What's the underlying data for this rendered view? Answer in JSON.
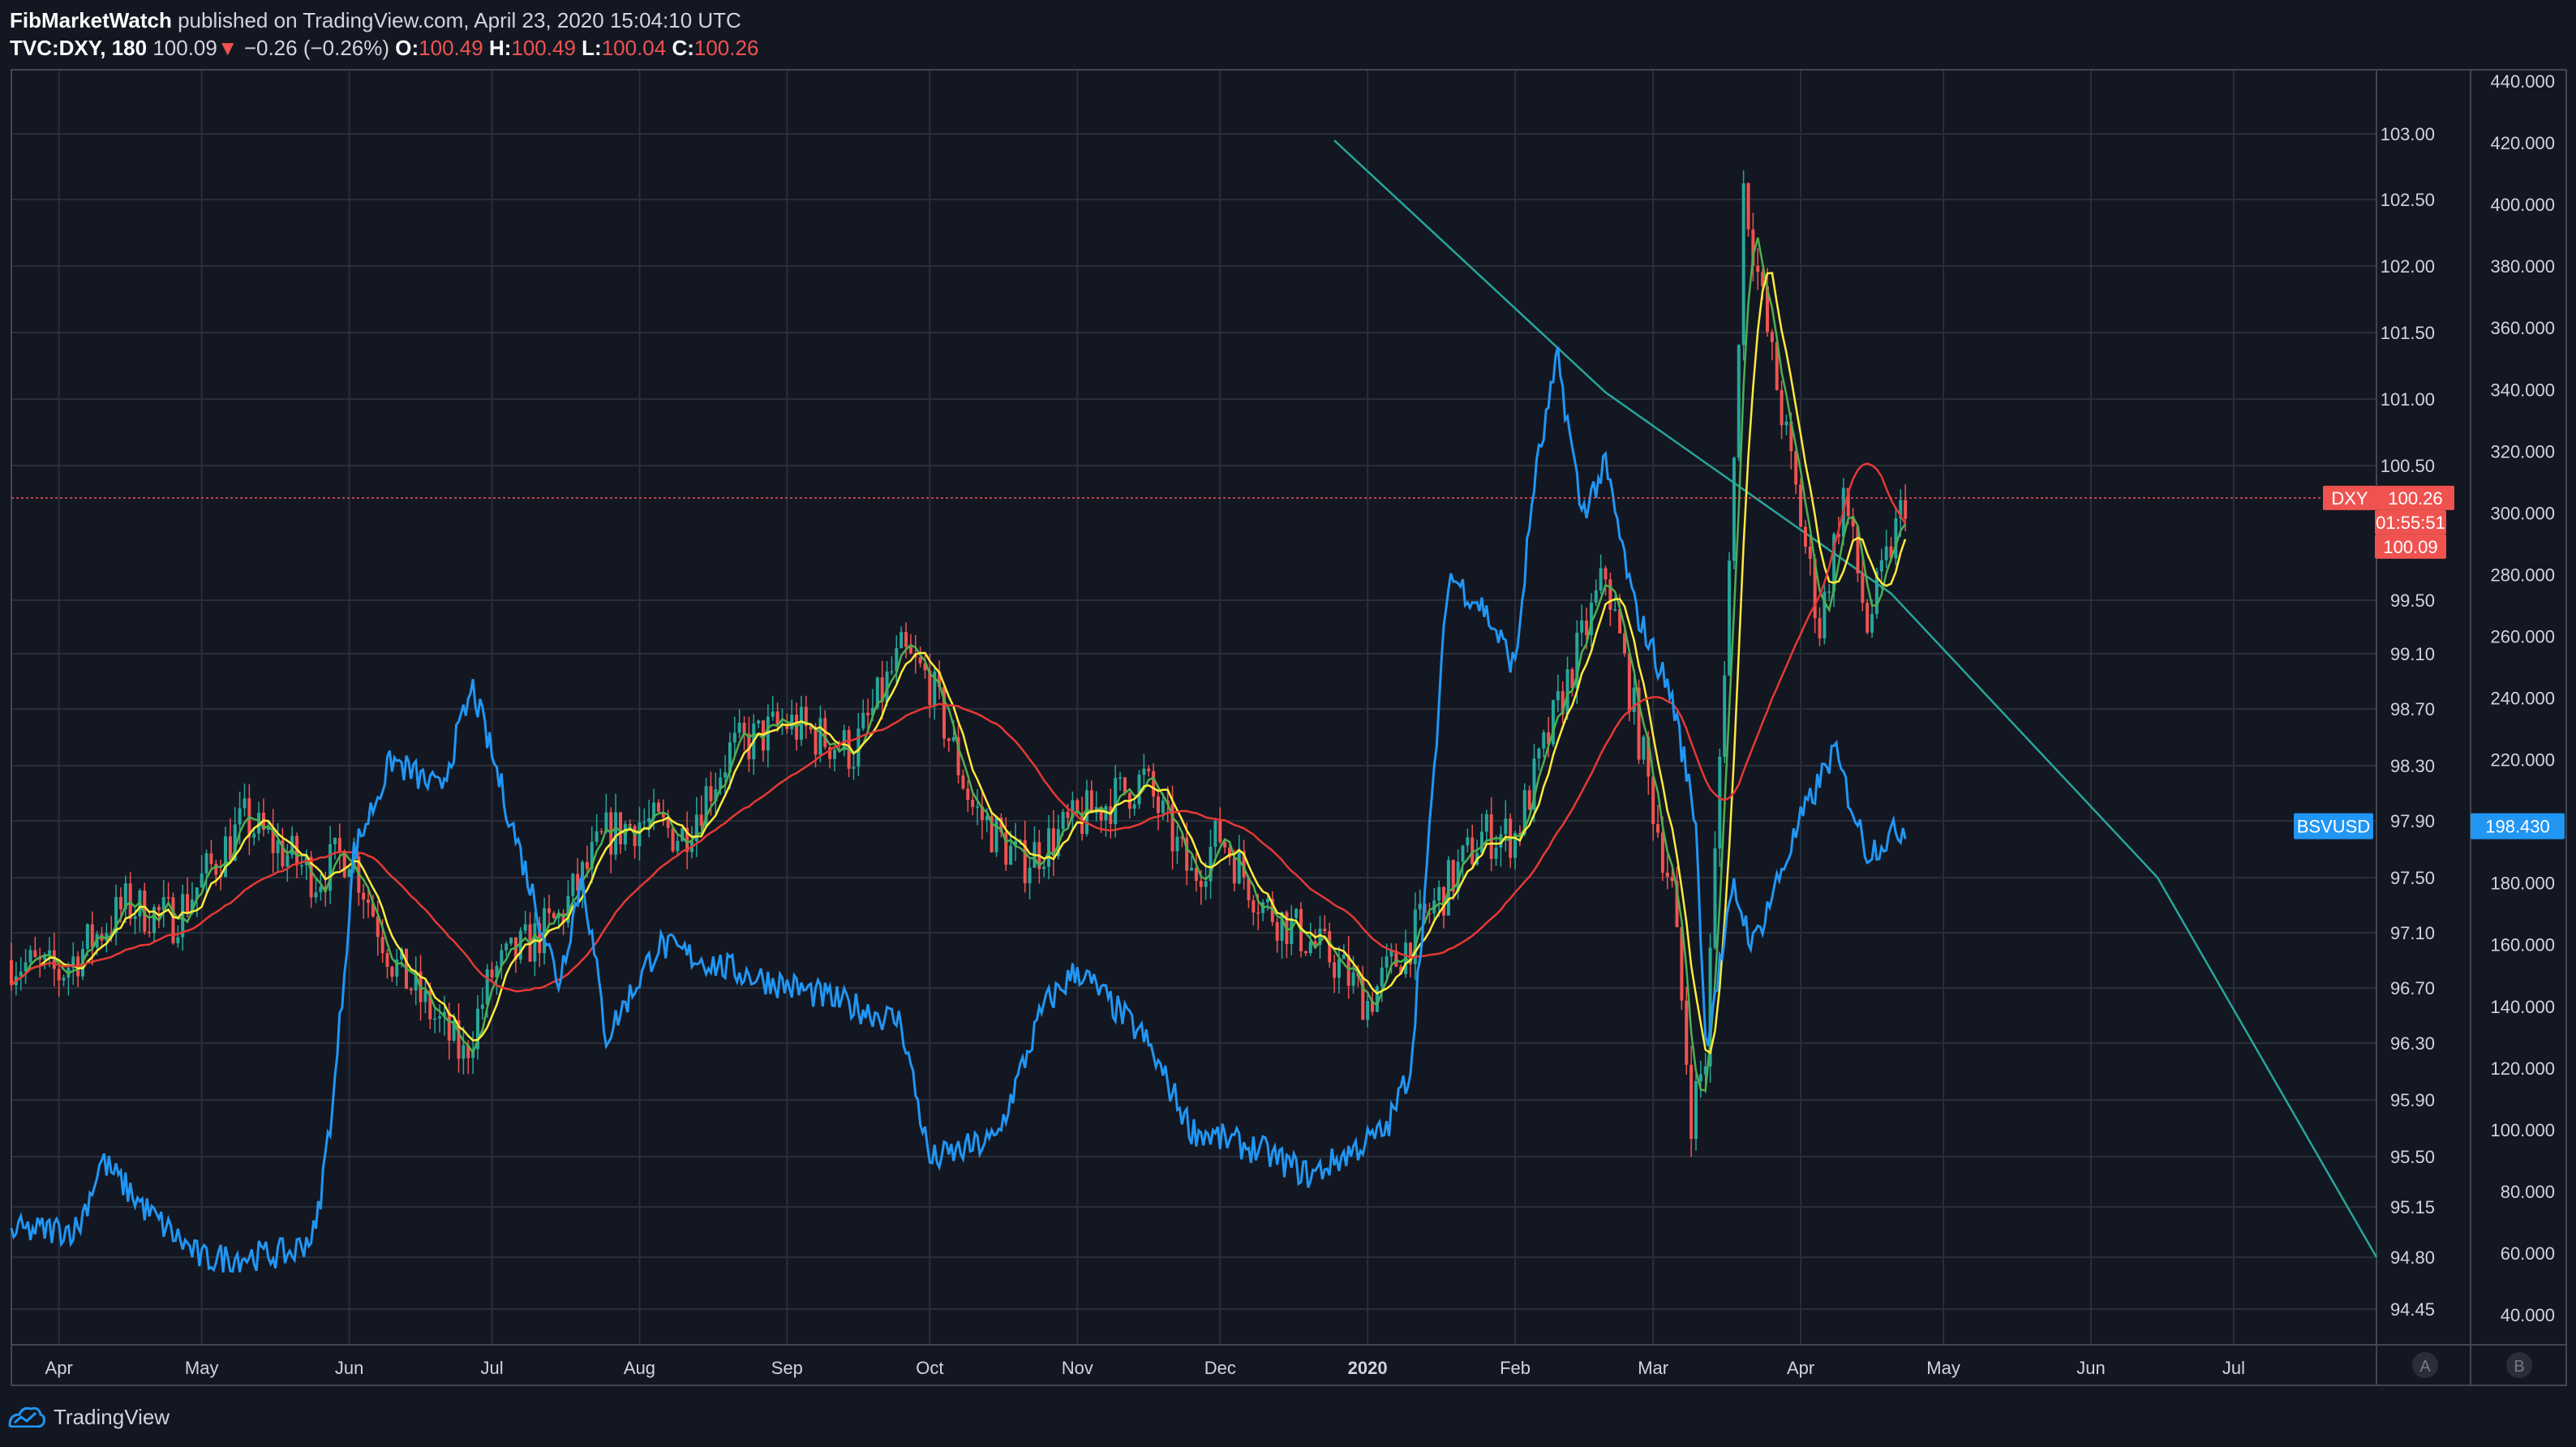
{
  "header": {
    "author": "FibMarketWatch",
    "published_text": "published on TradingView.com, April 23, 2020 15:04:10 UTC",
    "symbol": "TVC:DXY, 180",
    "last": "100.09",
    "arrow": "▼",
    "change": "−0.26 (−0.26%)",
    "o_label": "O:",
    "o_value": "100.49",
    "h_label": "H:",
    "h_value": "100.49",
    "l_label": "L:",
    "l_value": "100.04",
    "c_label": "C:",
    "c_value": "100.26"
  },
  "footer": {
    "brand": "TradingView"
  },
  "colors": {
    "background": "#131722",
    "grid": "#2a2e39",
    "text": "#d1d4dc",
    "up": "#26a69a",
    "down": "#ef5350",
    "bsv": "#2196f3",
    "ma_fast": "#4caf50",
    "ma_mid": "#ffeb3b",
    "ma_slow": "#e53935",
    "trendline": "#26a69a"
  },
  "chart_data": {
    "type": "line",
    "x_ticks": [
      "Apr",
      "May",
      "Jun",
      "Jul",
      "Aug",
      "Sep",
      "Oct",
      "Nov",
      "Dec",
      "2020",
      "Feb",
      "Mar",
      "Apr",
      "May",
      "Jun",
      "Jul"
    ],
    "left_axis": {
      "symbol": "DXY",
      "ticks": [
        "103.00",
        "102.50",
        "102.00",
        "101.50",
        "101.00",
        "100.50",
        "99.50",
        "99.10",
        "98.70",
        "98.30",
        "97.90",
        "97.50",
        "97.10",
        "96.70",
        "96.30",
        "95.90",
        "95.50",
        "95.15",
        "94.80",
        "94.45"
      ],
      "last_value_label": "DXY",
      "last_value": "100.26",
      "countdown": "01:55:51",
      "bid": "100.09"
    },
    "right_axis": {
      "symbol": "BSVUSD",
      "ticks": [
        "440.000",
        "420.000",
        "400.000",
        "380.000",
        "360.000",
        "340.000",
        "320.000",
        "300.000",
        "280.000",
        "260.000",
        "240.000",
        "220.000",
        "200.000",
        "180.000",
        "160.000",
        "140.000",
        "120.000",
        "100.000",
        "80.000",
        "60.000",
        "40.000"
      ],
      "last_value_label": "BSVUSD",
      "last_value": "198.430"
    },
    "scale_buttons": [
      "A",
      "B"
    ],
    "series": [
      {
        "symbol": "DXY",
        "kind": "candles",
        "color_up": "#26a69a",
        "color_down": "#ef5350",
        "x": [
          "2019-03-22",
          "2019-04-01",
          "2019-04-15",
          "2019-04-25",
          "2019-05-10",
          "2019-05-25",
          "2019-06-01",
          "2019-06-10",
          "2019-06-25",
          "2019-07-01",
          "2019-07-15",
          "2019-07-25",
          "2019-08-01",
          "2019-08-10",
          "2019-08-20",
          "2019-09-01",
          "2019-09-15",
          "2019-09-25",
          "2019-10-01",
          "2019-10-10",
          "2019-10-20",
          "2019-11-01",
          "2019-11-15",
          "2019-11-25",
          "2019-12-01",
          "2019-12-10",
          "2019-12-25",
          "2020-01-01",
          "2020-01-15",
          "2020-01-25",
          "2020-02-01",
          "2020-02-10",
          "2020-02-20",
          "2020-03-01",
          "2020-03-05",
          "2020-03-09",
          "2020-03-12",
          "2020-03-18",
          "2020-03-20",
          "2020-03-25",
          "2020-04-01",
          "2020-04-05",
          "2020-04-10",
          "2020-04-15",
          "2020-04-23"
        ],
        "values": [
          96.9,
          96.8,
          97.3,
          97.2,
          97.9,
          97.5,
          97.7,
          96.9,
          96.2,
          96.8,
          97.2,
          97.8,
          97.9,
          97.8,
          98.4,
          98.6,
          98.4,
          99.1,
          98.9,
          98.0,
          97.6,
          97.9,
          98.2,
          97.5,
          97.8,
          97.3,
          96.9,
          96.6,
          97.3,
          97.8,
          97.8,
          98.7,
          99.7,
          98.0,
          97.4,
          95.8,
          96.2,
          100.5,
          102.6,
          101.5,
          100.1,
          99.3,
          100.3,
          99.3,
          100.26
        ]
      },
      {
        "symbol": "BSVUSD",
        "kind": "line",
        "color": "#2196f3",
        "x": [
          "2019-03-22",
          "2019-04-05",
          "2019-04-10",
          "2019-04-20",
          "2019-05-01",
          "2019-05-20",
          "2019-05-25",
          "2019-05-29",
          "2019-06-02",
          "2019-06-10",
          "2019-06-20",
          "2019-06-27",
          "2019-07-05",
          "2019-07-15",
          "2019-07-20",
          "2019-07-25",
          "2019-08-05",
          "2019-08-20",
          "2019-09-05",
          "2019-09-25",
          "2019-10-01",
          "2019-10-15",
          "2019-10-25",
          "2019-11-01",
          "2019-11-15",
          "2019-11-25",
          "2019-12-10",
          "2019-12-20",
          "2020-01-05",
          "2020-01-10",
          "2020-01-14",
          "2020-01-18",
          "2020-01-25",
          "2020-02-01",
          "2020-02-05",
          "2020-02-10",
          "2020-02-15",
          "2020-02-20",
          "2020-02-26",
          "2020-03-05",
          "2020-03-10",
          "2020-03-12",
          "2020-03-18",
          "2020-03-22",
          "2020-04-01",
          "2020-04-08",
          "2020-04-15",
          "2020-04-23"
        ],
        "values": [
          67,
          68,
          90,
          73,
          58,
          60,
          67,
          115,
          190,
          220,
          210,
          243,
          200,
          148,
          183,
          130,
          160,
          152,
          145,
          135,
          90,
          97,
          140,
          152,
          130,
          100,
          93,
          85,
          100,
          120,
          195,
          280,
          270,
          250,
          310,
          350,
          300,
          315,
          270,
          240,
          200,
          128,
          178,
          160,
          200,
          223,
          190,
          198.43
        ]
      }
    ]
  }
}
